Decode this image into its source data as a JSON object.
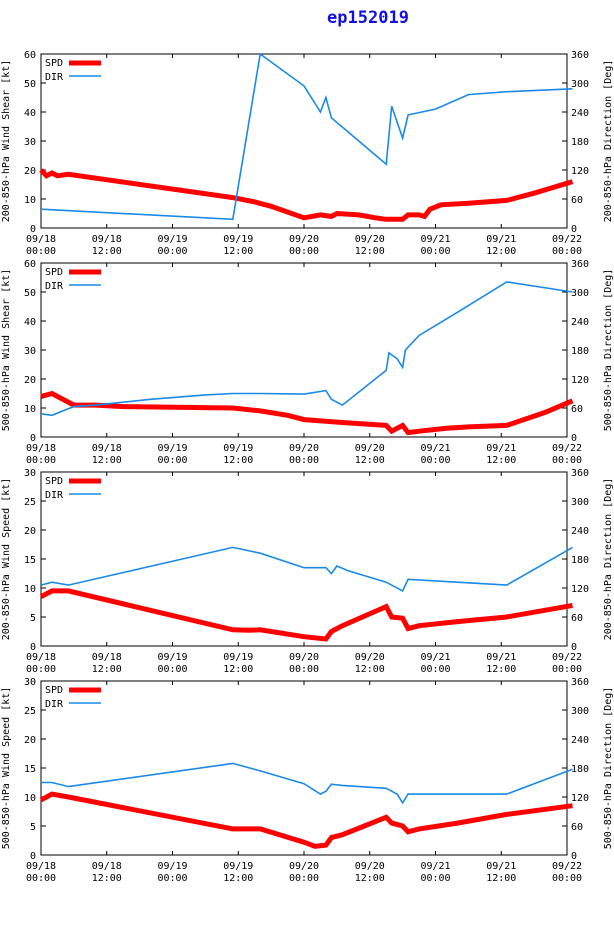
{
  "title": "ep152019",
  "x_ticks": [
    "09/18\n00:00",
    "09/18\n12:00",
    "09/19\n00:00",
    "09/19\n12:00",
    "09/20\n00:00",
    "09/20\n12:00",
    "09/21\n00:00",
    "09/21\n12:00",
    "09/22\n00:00"
  ],
  "right_label": "Direction [Deg]",
  "legend": {
    "spd": "SPD",
    "dir": "DIR"
  },
  "colors": {
    "spd": "#ff0000",
    "dir": "#1a8ae6",
    "title": "#1010e0"
  },
  "chart_data": [
    {
      "type": "line",
      "ylabel": "200-850-hPa Wind Shear [kt]",
      "right_ylabel": "200-850-hPa Direction [Deg]",
      "xlim_hours": [
        0,
        96
      ],
      "ylim": [
        0,
        60
      ],
      "y_ticks": [
        0,
        10,
        20,
        30,
        40,
        50,
        60
      ],
      "y2lim": [
        0,
        360
      ],
      "y2_ticks": [
        0,
        60,
        120,
        180,
        240,
        300,
        360
      ],
      "series": [
        {
          "name": "SPD",
          "axis": "left",
          "points": [
            [
              0,
              20
            ],
            [
              1,
              18
            ],
            [
              2,
              19
            ],
            [
              3,
              18
            ],
            [
              5,
              18.5
            ],
            [
              35,
              10.5
            ],
            [
              39,
              9
            ],
            [
              42,
              7.5
            ],
            [
              48,
              3.5
            ],
            [
              51,
              4.5
            ],
            [
              53,
              4
            ],
            [
              54,
              5
            ],
            [
              58,
              4.5
            ],
            [
              61,
              3.5
            ],
            [
              63,
              3
            ],
            [
              66,
              3
            ],
            [
              67,
              4.5
            ],
            [
              69,
              4.5
            ],
            [
              70,
              4
            ],
            [
              71,
              6.5
            ],
            [
              73,
              8
            ],
            [
              78,
              8.5
            ],
            [
              85,
              9.5
            ],
            [
              90,
              12
            ],
            [
              97,
              16
            ]
          ]
        },
        {
          "name": "DIR",
          "axis": "left",
          "points": [
            [
              0,
              6.5
            ],
            [
              35,
              3
            ],
            [
              40,
              60
            ],
            [
              48,
              49
            ],
            [
              51,
              40
            ],
            [
              52,
              45
            ],
            [
              53,
              38
            ],
            [
              63,
              22
            ],
            [
              64,
              42
            ],
            [
              66,
              31
            ],
            [
              67,
              39
            ],
            [
              72,
              41
            ],
            [
              78,
              46
            ],
            [
              85,
              47
            ],
            [
              97,
              48
            ]
          ]
        }
      ]
    },
    {
      "type": "line",
      "ylabel": "500-850-hPa Wind Shear [kt]",
      "right_ylabel": "500-850-hPa Direction [Deg]",
      "xlim_hours": [
        0,
        96
      ],
      "ylim": [
        0,
        60
      ],
      "y_ticks": [
        0,
        10,
        20,
        30,
        40,
        50,
        60
      ],
      "y2lim": [
        0,
        360
      ],
      "y2_ticks": [
        0,
        60,
        120,
        180,
        240,
        300,
        360
      ],
      "series": [
        {
          "name": "SPD",
          "axis": "left",
          "points": [
            [
              0,
              14
            ],
            [
              2,
              15
            ],
            [
              3,
              14
            ],
            [
              4,
              13
            ],
            [
              6,
              11
            ],
            [
              10,
              11
            ],
            [
              15,
              10.5
            ],
            [
              35,
              10
            ],
            [
              40,
              9
            ],
            [
              45,
              7.5
            ],
            [
              48,
              6
            ],
            [
              55,
              5
            ],
            [
              63,
              4
            ],
            [
              64,
              2
            ],
            [
              65,
              3
            ],
            [
              66,
              4
            ],
            [
              67,
              1.5
            ],
            [
              69,
              2
            ],
            [
              74,
              3
            ],
            [
              78,
              3.5
            ],
            [
              85,
              4
            ],
            [
              92,
              8.5
            ],
            [
              97,
              12.5
            ]
          ]
        },
        {
          "name": "DIR",
          "axis": "left",
          "points": [
            [
              0,
              8
            ],
            [
              2,
              7.5
            ],
            [
              4,
              9
            ],
            [
              6,
              10.5
            ],
            [
              10,
              11
            ],
            [
              20,
              13
            ],
            [
              30,
              14.5
            ],
            [
              35,
              15
            ],
            [
              40,
              15
            ],
            [
              48,
              14.8
            ],
            [
              52,
              16
            ],
            [
              53,
              13
            ],
            [
              54,
              12
            ],
            [
              55,
              11
            ],
            [
              63,
              23
            ],
            [
              63.5,
              29
            ],
            [
              65,
              27
            ],
            [
              66,
              24
            ],
            [
              66.5,
              30
            ],
            [
              69,
              35
            ],
            [
              76,
              43
            ],
            [
              85,
              53.5
            ],
            [
              97,
              50
            ]
          ]
        }
      ]
    },
    {
      "type": "line",
      "ylabel": "200-850-hPa Wind Speed [kt]",
      "right_ylabel": "200-850-hPa Direction [Deg]",
      "xlim_hours": [
        0,
        96
      ],
      "ylim": [
        0,
        30
      ],
      "y_ticks": [
        0,
        5,
        10,
        15,
        20,
        25,
        30
      ],
      "y2lim": [
        0,
        360
      ],
      "y2_ticks": [
        0,
        60,
        120,
        180,
        240,
        300,
        360
      ],
      "series": [
        {
          "name": "SPD",
          "axis": "left",
          "points": [
            [
              0,
              8.5
            ],
            [
              2,
              9.5
            ],
            [
              5,
              9.5
            ],
            [
              35,
              2.8
            ],
            [
              38,
              2.7
            ],
            [
              40,
              2.8
            ],
            [
              48,
              1.6
            ],
            [
              52,
              1.2
            ],
            [
              53,
              2.5
            ],
            [
              55,
              3.5
            ],
            [
              63,
              6.8
            ],
            [
              64,
              5
            ],
            [
              66,
              4.8
            ],
            [
              67,
              3
            ],
            [
              69,
              3.5
            ],
            [
              76,
              4.2
            ],
            [
              85,
              5
            ],
            [
              97,
              7
            ]
          ]
        },
        {
          "name": "DIR",
          "axis": "left",
          "points": [
            [
              0,
              10.5
            ],
            [
              2,
              11
            ],
            [
              5,
              10.5
            ],
            [
              35,
              17
            ],
            [
              40,
              16
            ],
            [
              48,
              13.5
            ],
            [
              52,
              13.5
            ],
            [
              53,
              12.5
            ],
            [
              54,
              13.8
            ],
            [
              56,
              13
            ],
            [
              63,
              11
            ],
            [
              66,
              9.5
            ],
            [
              67,
              11.5
            ],
            [
              76,
              11
            ],
            [
              85,
              10.5
            ],
            [
              97,
              17
            ]
          ]
        }
      ]
    },
    {
      "type": "line",
      "ylabel": "500-850-hPa Wind Speed [kt]",
      "right_ylabel": "500-850-hPa Direction [Deg]",
      "xlim_hours": [
        0,
        96
      ],
      "ylim": [
        0,
        30
      ],
      "y_ticks": [
        0,
        5,
        10,
        15,
        20,
        25,
        30
      ],
      "y2lim": [
        0,
        360
      ],
      "y2_ticks": [
        0,
        60,
        120,
        180,
        240,
        300,
        360
      ],
      "series": [
        {
          "name": "SPD",
          "axis": "left",
          "points": [
            [
              0,
              9.5
            ],
            [
              2,
              10.5
            ],
            [
              5,
              10
            ],
            [
              35,
              4.5
            ],
            [
              40,
              4.5
            ],
            [
              48,
              2.2
            ],
            [
              50,
              1.5
            ],
            [
              52,
              1.7
            ],
            [
              53,
              3
            ],
            [
              55,
              3.5
            ],
            [
              63,
              6.5
            ],
            [
              64,
              5.5
            ],
            [
              66,
              5
            ],
            [
              67,
              4
            ],
            [
              69,
              4.5
            ],
            [
              76,
              5.5
            ],
            [
              85,
              7
            ],
            [
              97,
              8.5
            ]
          ]
        },
        {
          "name": "DIR",
          "axis": "left",
          "points": [
            [
              0,
              12.5
            ],
            [
              2,
              12.5
            ],
            [
              5,
              11.8
            ],
            [
              35,
              15.8
            ],
            [
              40,
              14.5
            ],
            [
              48,
              12.3
            ],
            [
              51,
              10.5
            ],
            [
              52,
              11
            ],
            [
              53,
              12.2
            ],
            [
              55,
              12
            ],
            [
              63,
              11.5
            ],
            [
              65,
              10.5
            ],
            [
              66,
              9
            ],
            [
              67,
              10.5
            ],
            [
              76,
              10.5
            ],
            [
              85,
              10.5
            ],
            [
              97,
              14.8
            ]
          ]
        }
      ]
    }
  ]
}
